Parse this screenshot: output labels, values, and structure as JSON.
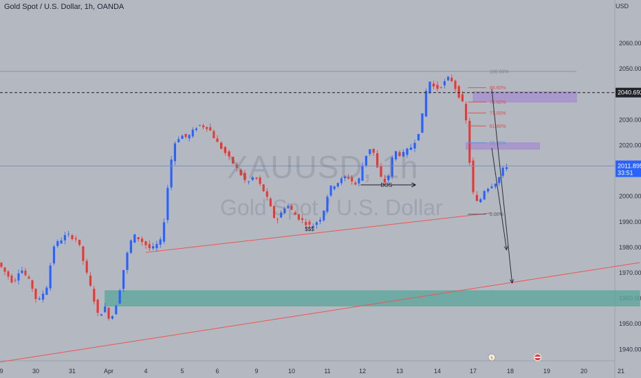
{
  "chart_data": {
    "type": "candlestick",
    "title": "Gold Spot / U.S. Dollar, 1h, OANDA",
    "watermark": [
      "XAUUSD, 1h",
      "Gold Spot / U.S. Dollar"
    ],
    "currency_label": "USD",
    "y_ticks": [
      "1940.00",
      "1950.00",
      "1960.00",
      "1970.00",
      "1980.00",
      "1990.00",
      "2000.00",
      "2010.00",
      "2020.00",
      "2030.00",
      "2040.00",
      "2050.00",
      "2060.00"
    ],
    "ylim": [
      1935.5,
      2077
    ],
    "x_ticks": [
      {
        "label": "9",
        "pos": 0
      },
      {
        "label": "30",
        "pos": 1
      },
      {
        "label": "31",
        "pos": 2
      },
      {
        "label": "Apr",
        "pos": 3
      },
      {
        "label": "4",
        "pos": 4
      },
      {
        "label": "5",
        "pos": 5
      },
      {
        "label": "6",
        "pos": 6
      },
      {
        "label": "9",
        "pos": 7
      },
      {
        "label": "10",
        "pos": 8
      },
      {
        "label": "11",
        "pos": 9
      },
      {
        "label": "12",
        "pos": 10
      },
      {
        "label": "13",
        "pos": 11
      },
      {
        "label": "14",
        "pos": 12
      },
      {
        "label": "17",
        "pos": 13
      },
      {
        "label": "18",
        "pos": 14
      },
      {
        "label": "19",
        "pos": 15
      },
      {
        "label": "20",
        "pos": 16
      },
      {
        "label": "21",
        "pos": 17
      }
    ],
    "price_path": [
      [
        -0.05,
        1974
      ],
      [
        0.4,
        1966
      ],
      [
        0.6,
        1972
      ],
      [
        0.9,
        1966
      ],
      [
        1.1,
        1958
      ],
      [
        1.4,
        1966
      ],
      [
        1.5,
        1980
      ],
      [
        1.9,
        1985
      ],
      [
        2.2,
        1983
      ],
      [
        2.4,
        1972
      ],
      [
        2.6,
        1962
      ],
      [
        2.8,
        1951
      ],
      [
        2.9,
        1958
      ],
      [
        3.1,
        1951
      ],
      [
        3.3,
        1960
      ],
      [
        3.5,
        1975
      ],
      [
        3.7,
        1985
      ],
      [
        3.9,
        1983
      ],
      [
        4.2,
        1979
      ],
      [
        4.5,
        1983
      ],
      [
        4.6,
        1998
      ],
      [
        4.8,
        2020
      ],
      [
        5.0,
        2024
      ],
      [
        5.2,
        2023
      ],
      [
        5.5,
        2028
      ],
      [
        5.8,
        2027
      ],
      [
        6.0,
        2022
      ],
      [
        6.3,
        2016
      ],
      [
        6.5,
        2012
      ],
      [
        6.8,
        2005
      ],
      [
        7.0,
        2008
      ],
      [
        7.3,
        2001
      ],
      [
        7.6,
        1990
      ],
      [
        7.9,
        1997
      ],
      [
        8.2,
        1992
      ],
      [
        8.6,
        1988
      ],
      [
        8.9,
        1992
      ],
      [
        9.1,
        2003
      ],
      [
        9.3,
        2005
      ],
      [
        9.6,
        2008
      ],
      [
        9.9,
        2004
      ],
      [
        10.1,
        2015
      ],
      [
        10.3,
        2020
      ],
      [
        10.5,
        2008
      ],
      [
        10.7,
        2005
      ],
      [
        10.9,
        2018
      ],
      [
        11.1,
        2016
      ],
      [
        11.4,
        2020
      ],
      [
        11.6,
        2027
      ],
      [
        11.8,
        2046
      ],
      [
        12.0,
        2042
      ],
      [
        12.2,
        2044
      ],
      [
        12.4,
        2047
      ],
      [
        12.6,
        2041
      ],
      [
        12.8,
        2035
      ],
      [
        12.9,
        2024
      ],
      [
        13.0,
        2003
      ],
      [
        13.2,
        1996
      ],
      [
        13.3,
        2002
      ],
      [
        13.5,
        2004
      ],
      [
        13.7,
        2006
      ],
      [
        13.9,
        2012
      ]
    ],
    "current_price": {
      "label": "2011.895",
      "countdown": "33:51",
      "value": 2011.9
    },
    "marked_level": {
      "label": "2040.692",
      "value": 2040.69
    },
    "fibonacci": [
      {
        "label": "100.00%",
        "value": 2049.0,
        "color": "#808080"
      },
      {
        "label": "88.60%",
        "value": 2042.6,
        "color": "#d9534f"
      },
      {
        "label": "78.60%",
        "value": 2037.0,
        "color": "#d9534f"
      },
      {
        "label": "71.00%",
        "value": 2032.7,
        "color": "#d9534f"
      },
      {
        "label": "61.80%",
        "value": 2027.6,
        "color": "#d9534f"
      },
      {
        "label": "50.00%",
        "value": 2021.0,
        "color": "#5f8fd6"
      },
      {
        "label": "0.00%",
        "value": 1993.0,
        "color": "#555555"
      }
    ],
    "zones": [
      {
        "name": "supply-zone-upper",
        "from_x": 13.0,
        "to_x": 15.8,
        "y_low": 2037.0,
        "y_high": 2041.0,
        "color": "#a48ad0"
      },
      {
        "name": "supply-zone-lower",
        "from_x": 12.8,
        "to_x": 14.8,
        "y_low": 2018.5,
        "y_high": 2021.0,
        "color": "#a48ad0"
      },
      {
        "name": "demand-zone",
        "from_x": 2.9,
        "to_x": 17.5,
        "y_low": 1957.0,
        "y_high": 1963.0,
        "color": "#5ea89c"
      }
    ],
    "trendlines": [
      {
        "name": "main-trendline",
        "from": [
          -0.05,
          1935
        ],
        "to": [
          17.5,
          1974
        ],
        "color": "#ef5350"
      },
      {
        "name": "short-trendline",
        "from": [
          4.0,
          1978
        ],
        "to": [
          13.5,
          1993.5
        ],
        "color": "#ef5350"
      }
    ],
    "annotations": [
      {
        "label": "BOS",
        "x": 10.6,
        "y": 2004.5
      },
      {
        "label": "$$$",
        "x": 8.5,
        "y": 1986.5
      }
    ],
    "arrows": [
      {
        "name": "arrow-1",
        "from": [
          13.5,
          2019
        ],
        "to": [
          13.9,
          1979
        ]
      },
      {
        "name": "arrow-2",
        "from": [
          13.5,
          2042
        ],
        "to": [
          14.05,
          1966
        ]
      }
    ]
  }
}
